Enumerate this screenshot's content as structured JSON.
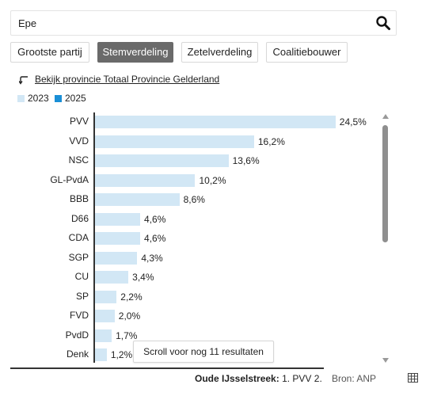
{
  "search": {
    "value": "Epe"
  },
  "tabs": [
    {
      "label": "Grootste partij",
      "active": false
    },
    {
      "label": "Stemverdeling",
      "active": true
    },
    {
      "label": "Zetelverdeling",
      "active": false
    },
    {
      "label": "Coalitiebouwer",
      "active": false
    }
  ],
  "back_link": {
    "label": "Bekijk provincie Totaal Provincie Gelderland"
  },
  "legend": [
    {
      "label": "2023",
      "color": "#d2e7f5"
    },
    {
      "label": "2025",
      "color": "#1a8fd6"
    }
  ],
  "chart_data": {
    "type": "bar",
    "orientation": "horizontal",
    "categories": [
      "PVV",
      "VVD",
      "NSC",
      "GL-PvdA",
      "BBB",
      "D66",
      "CDA",
      "SGP",
      "CU",
      "SP",
      "FVD",
      "PvdD",
      "Denk"
    ],
    "series": [
      {
        "name": "2023",
        "values": [
          24.5,
          16.2,
          13.6,
          10.2,
          8.6,
          4.6,
          4.6,
          4.3,
          3.4,
          2.2,
          2.0,
          1.7,
          1.2
        ]
      }
    ],
    "value_labels": [
      "24,5%",
      "16,2%",
      "13,6%",
      "10,2%",
      "8,6%",
      "4,6%",
      "4,6%",
      "4,3%",
      "3,4%",
      "2,2%",
      "2,0%",
      "1,7%",
      "1,2%"
    ],
    "xlim": [
      0,
      25
    ],
    "bar_color": "#d2e7f5"
  },
  "tooltip": {
    "text": "Scroll voor nog 11 resultaten"
  },
  "footer": {
    "region_label": "Oude IJsselstreek:",
    "region_value": "1. PVV  2.",
    "source": "Bron: ANP"
  }
}
